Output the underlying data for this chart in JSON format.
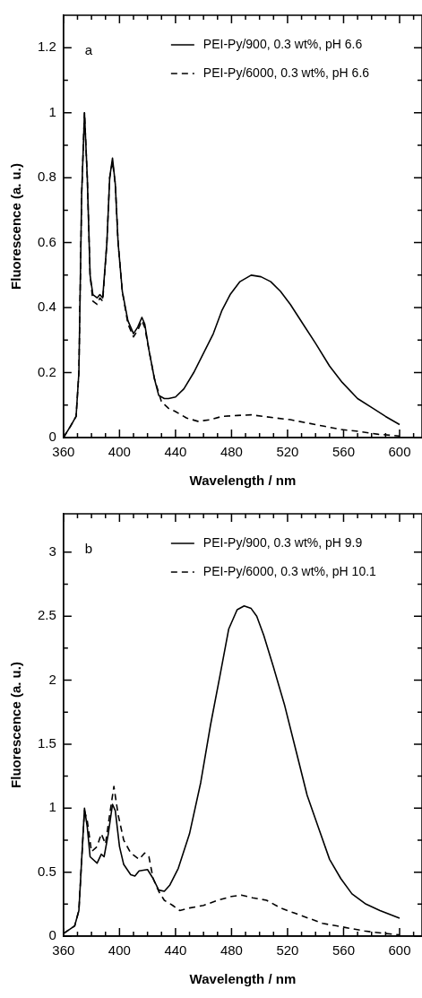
{
  "chart_data": [
    {
      "type": "line",
      "xlabel": "Wavelength / nm",
      "ylabel": "Fluorescence (a. u.)",
      "annotations": [
        "a"
      ],
      "legend": "top right",
      "grid": false,
      "marker": "none",
      "xlim": [
        360,
        616
      ],
      "ylim": [
        0,
        1.3
      ],
      "xticks": [
        360,
        {
          "value": 370,
          "label": null
        },
        {
          "value": 380,
          "label": null
        },
        {
          "value": 390,
          "label": null
        },
        400,
        {
          "value": 410,
          "label": null
        },
        {
          "value": 420,
          "label": null
        },
        {
          "value": 430,
          "label": null
        },
        440,
        {
          "value": 450,
          "label": null
        },
        {
          "value": 460,
          "label": null
        },
        {
          "value": 470,
          "label": null
        },
        480,
        {
          "value": 490,
          "label": null
        },
        {
          "value": 500,
          "label": null
        },
        {
          "value": 510,
          "label": null
        },
        520,
        {
          "value": 530,
          "label": null
        },
        {
          "value": 540,
          "label": null
        },
        {
          "value": 550,
          "label": null
        },
        560,
        {
          "value": 570,
          "label": null
        },
        {
          "value": 580,
          "label": null
        },
        {
          "value": 590,
          "label": null
        },
        600,
        {
          "value": 610,
          "label": null
        }
      ],
      "yticks": [
        0,
        {
          "value": 0.1,
          "label": null
        },
        0.2,
        {
          "value": 0.3,
          "label": null
        },
        0.4,
        {
          "value": 0.5,
          "label": null
        },
        0.6,
        {
          "value": 0.7,
          "label": null
        },
        0.8,
        {
          "value": 0.9,
          "label": null
        },
        1,
        {
          "value": 1.1,
          "label": null
        },
        1.2
      ],
      "series": [
        {
          "name": "PEI-Py/900, 0.3 wt%, pH 6.6",
          "color": "#000000",
          "line_style": "solid",
          "x": [
            360,
            365,
            369,
            371,
            373,
            375,
            377,
            379,
            381,
            384,
            386,
            388,
            391,
            393,
            395,
            397,
            399,
            402,
            406,
            410,
            413,
            416,
            418,
            421,
            425,
            428,
            432,
            435,
            440,
            446,
            453,
            460,
            467,
            473,
            479,
            486,
            494,
            501,
            508,
            515,
            522,
            531,
            540,
            550,
            559,
            570,
            581,
            590,
            600
          ],
          "values": [
            0,
            0.035,
            0.065,
            0.2,
            0.75,
            1.0,
            0.8,
            0.5,
            0.44,
            0.43,
            0.44,
            0.43,
            0.6,
            0.8,
            0.86,
            0.78,
            0.6,
            0.45,
            0.36,
            0.32,
            0.34,
            0.37,
            0.35,
            0.27,
            0.18,
            0.13,
            0.12,
            0.12,
            0.125,
            0.15,
            0.2,
            0.26,
            0.32,
            0.39,
            0.44,
            0.48,
            0.5,
            0.495,
            0.48,
            0.45,
            0.41,
            0.35,
            0.29,
            0.22,
            0.17,
            0.12,
            0.09,
            0.065,
            0.04
          ]
        },
        {
          "name": "PEI-Py/6000, 0.3 wt%, pH 6.6",
          "color": "#000000",
          "line_style": "dashed",
          "x": [
            360,
            365,
            369,
            371,
            373,
            375,
            377,
            379,
            381,
            384,
            386,
            388,
            391,
            393,
            395,
            397,
            399,
            402,
            406,
            410,
            413,
            416,
            418,
            421,
            425,
            430,
            435,
            440,
            448,
            456,
            465,
            473,
            484,
            494,
            503,
            512,
            522,
            534,
            546,
            558,
            569,
            585,
            600
          ],
          "values": [
            0,
            0.035,
            0.065,
            0.2,
            0.75,
            1.0,
            0.8,
            0.5,
            0.42,
            0.41,
            0.43,
            0.42,
            0.6,
            0.8,
            0.85,
            0.78,
            0.6,
            0.45,
            0.35,
            0.31,
            0.33,
            0.36,
            0.34,
            0.27,
            0.18,
            0.11,
            0.09,
            0.08,
            0.06,
            0.05,
            0.055,
            0.065,
            0.068,
            0.07,
            0.065,
            0.06,
            0.055,
            0.045,
            0.035,
            0.025,
            0.02,
            0.01,
            0.005
          ]
        }
      ]
    },
    {
      "type": "line",
      "xlabel": "Wavelength / nm",
      "ylabel": "Fluorescence (a. u.)",
      "annotations": [
        "b"
      ],
      "legend": "top right",
      "grid": false,
      "marker": "none",
      "xlim": [
        360,
        616
      ],
      "ylim": [
        0,
        3.3
      ],
      "xticks": [
        360,
        {
          "value": 370,
          "label": null
        },
        {
          "value": 380,
          "label": null
        },
        {
          "value": 390,
          "label": null
        },
        400,
        {
          "value": 410,
          "label": null
        },
        {
          "value": 420,
          "label": null
        },
        {
          "value": 430,
          "label": null
        },
        440,
        {
          "value": 450,
          "label": null
        },
        {
          "value": 460,
          "label": null
        },
        {
          "value": 470,
          "label": null
        },
        480,
        {
          "value": 490,
          "label": null
        },
        {
          "value": 500,
          "label": null
        },
        {
          "value": 510,
          "label": null
        },
        520,
        {
          "value": 530,
          "label": null
        },
        {
          "value": 540,
          "label": null
        },
        {
          "value": 550,
          "label": null
        },
        560,
        {
          "value": 570,
          "label": null
        },
        {
          "value": 580,
          "label": null
        },
        {
          "value": 590,
          "label": null
        },
        600,
        {
          "value": 610,
          "label": null
        }
      ],
      "yticks": [
        0,
        {
          "value": 0.25,
          "label": null
        },
        0.5,
        {
          "value": 0.75,
          "label": null
        },
        1,
        {
          "value": 1.25,
          "label": null
        },
        1.5,
        {
          "value": 1.75,
          "label": null
        },
        2,
        {
          "value": 2.25,
          "label": null
        },
        2.5,
        {
          "value": 2.75,
          "label": null
        },
        3
      ],
      "series": [
        {
          "name": "PEI-Py/900, 0.3 wt%, pH 9.9",
          "color": "#000000",
          "line_style": "solid",
          "x": [
            360,
            364,
            368,
            371,
            373,
            375,
            377,
            379,
            384,
            387,
            389,
            392,
            395,
            397,
            400,
            403,
            408,
            411,
            414,
            420,
            424,
            428,
            432,
            436,
            442,
            450,
            458,
            465,
            472,
            478,
            484,
            489,
            494,
            498,
            503,
            510,
            518,
            526,
            534,
            542,
            550,
            558,
            566,
            576,
            586,
            600
          ],
          "values": [
            0.02,
            0.05,
            0.08,
            0.2,
            0.6,
            1.0,
            0.85,
            0.62,
            0.57,
            0.64,
            0.62,
            0.8,
            1.03,
            0.98,
            0.7,
            0.56,
            0.48,
            0.47,
            0.51,
            0.52,
            0.45,
            0.36,
            0.35,
            0.4,
            0.53,
            0.8,
            1.2,
            1.65,
            2.05,
            2.4,
            2.55,
            2.58,
            2.56,
            2.5,
            2.35,
            2.1,
            1.8,
            1.45,
            1.1,
            0.85,
            0.6,
            0.45,
            0.33,
            0.25,
            0.2,
            0.14
          ]
        },
        {
          "name": "PEI-Py/6000, 0.3 wt%, pH 10.1",
          "color": "#000000",
          "line_style": "dashed",
          "x": [
            360,
            364,
            368,
            371,
            373,
            375,
            377,
            380,
            384,
            387,
            390,
            393,
            396,
            399,
            403,
            408,
            414,
            418,
            421,
            424,
            428,
            432,
            438,
            443,
            450,
            460,
            470,
            480,
            487,
            495,
            505,
            515,
            525,
            535,
            545,
            555,
            565,
            575,
            590,
            600
          ],
          "values": [
            0.02,
            0.05,
            0.08,
            0.2,
            0.6,
            0.98,
            0.9,
            0.66,
            0.7,
            0.8,
            0.72,
            0.95,
            1.17,
            0.95,
            0.75,
            0.65,
            0.6,
            0.65,
            0.62,
            0.45,
            0.35,
            0.28,
            0.24,
            0.2,
            0.22,
            0.24,
            0.28,
            0.31,
            0.32,
            0.3,
            0.28,
            0.22,
            0.18,
            0.14,
            0.1,
            0.08,
            0.06,
            0.04,
            0.02,
            0.01
          ]
        }
      ]
    }
  ]
}
